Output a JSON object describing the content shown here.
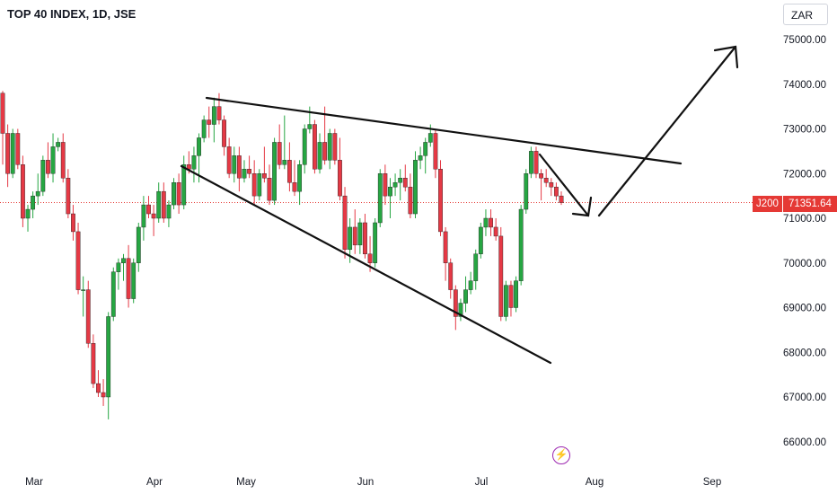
{
  "header": {
    "title": "TOP 40 INDEX, 1D, JSE",
    "currency": "ZAR"
  },
  "price_tag": {
    "symbol": "J200",
    "value": "71351.64"
  },
  "icons": {
    "bolt": "lightning-icon"
  },
  "colors": {
    "up": "#26a642",
    "down": "#e53945",
    "line": "#111111",
    "price_line": "#e53935"
  },
  "chart_data": {
    "type": "candlestick",
    "y_ticks": [
      "75000.00",
      "74000.00",
      "73000.00",
      "72000.00",
      "71000.00",
      "70000.00",
      "69000.00",
      "68000.00",
      "67000.00",
      "66000.00"
    ],
    "x_ticks": [
      "Mar",
      "Apr",
      "May",
      "Jun",
      "Jul",
      "Aug",
      "Sep"
    ],
    "ylim": [
      65800,
      75300
    ],
    "current_price": 71351.64,
    "candles": [
      [
        73800,
        73850,
        72200,
        72900
      ],
      [
        72900,
        73100,
        71700,
        72000
      ],
      [
        72000,
        73000,
        71900,
        72900
      ],
      [
        72900,
        73000,
        72100,
        72200
      ],
      [
        72200,
        72400,
        70800,
        71000
      ],
      [
        71000,
        71300,
        70700,
        71200
      ],
      [
        71200,
        71600,
        71000,
        71500
      ],
      [
        71500,
        72000,
        71300,
        71600
      ],
      [
        71600,
        72400,
        71500,
        72300
      ],
      [
        72300,
        72700,
        71900,
        72000
      ],
      [
        72000,
        72900,
        71800,
        72600
      ],
      [
        72600,
        72800,
        72500,
        72700
      ],
      [
        72700,
        72900,
        71800,
        71900
      ],
      [
        71900,
        72100,
        71000,
        71100
      ],
      [
        71100,
        71300,
        70500,
        70700
      ],
      [
        70700,
        70900,
        69300,
        69400
      ],
      [
        69400,
        69700,
        68800,
        69400
      ],
      [
        69400,
        69600,
        68100,
        68200
      ],
      [
        68200,
        68400,
        67200,
        67300
      ],
      [
        67300,
        67600,
        67000,
        67100
      ],
      [
        67100,
        67400,
        66800,
        67000
      ],
      [
        67000,
        68900,
        66500,
        68800
      ],
      [
        68800,
        69900,
        68700,
        69800
      ],
      [
        69800,
        70100,
        69400,
        70000
      ],
      [
        70000,
        70200,
        69600,
        70100
      ],
      [
        70100,
        70400,
        69000,
        69200
      ],
      [
        69200,
        70100,
        69100,
        70000
      ],
      [
        70000,
        70900,
        69800,
        70800
      ],
      [
        70800,
        71500,
        70500,
        71300
      ],
      [
        71300,
        71500,
        71000,
        71100
      ],
      [
        71100,
        71300,
        70600,
        71000
      ],
      [
        71000,
        71800,
        70900,
        71600
      ],
      [
        71600,
        71800,
        70900,
        71000
      ],
      [
        71000,
        71400,
        70800,
        71300
      ],
      [
        71300,
        71900,
        71200,
        71800
      ],
      [
        71800,
        72000,
        71100,
        71300
      ],
      [
        71300,
        72400,
        71200,
        72200
      ],
      [
        72200,
        72500,
        72000,
        72100
      ],
      [
        72100,
        72600,
        71800,
        72400
      ],
      [
        72400,
        72900,
        71800,
        72800
      ],
      [
        72800,
        73300,
        72700,
        73200
      ],
      [
        73200,
        73500,
        72800,
        73100
      ],
      [
        73100,
        73700,
        72700,
        73500
      ],
      [
        73500,
        73800,
        73100,
        73200
      ],
      [
        73200,
        73300,
        72400,
        72600
      ],
      [
        72600,
        72800,
        71900,
        72000
      ],
      [
        72000,
        72600,
        71800,
        72400
      ],
      [
        72400,
        72600,
        71600,
        71900
      ],
      [
        71900,
        72300,
        71800,
        72100
      ],
      [
        72100,
        72400,
        71900,
        72000
      ],
      [
        72000,
        72300,
        71300,
        71500
      ],
      [
        71500,
        72100,
        71400,
        72000
      ],
      [
        72000,
        72600,
        71800,
        71900
      ],
      [
        71900,
        72200,
        71300,
        71400
      ],
      [
        71400,
        72800,
        71300,
        72700
      ],
      [
        72700,
        73100,
        72100,
        72200
      ],
      [
        72200,
        73300,
        72100,
        72300
      ],
      [
        72300,
        72700,
        71600,
        71800
      ],
      [
        71800,
        72300,
        71500,
        71600
      ],
      [
        71600,
        72300,
        71300,
        72200
      ],
      [
        72200,
        73100,
        72000,
        73000
      ],
      [
        73000,
        73500,
        72900,
        73100
      ],
      [
        73100,
        73200,
        72000,
        72100
      ],
      [
        72100,
        72900,
        72000,
        72700
      ],
      [
        72700,
        73500,
        72200,
        72300
      ],
      [
        72300,
        73000,
        72100,
        72900
      ],
      [
        72900,
        73000,
        72200,
        72300
      ],
      [
        72300,
        72800,
        71400,
        71500
      ],
      [
        71500,
        71700,
        70100,
        70300
      ],
      [
        70300,
        71000,
        70000,
        70800
      ],
      [
        70800,
        71200,
        70200,
        70400
      ],
      [
        70400,
        71000,
        70200,
        70900
      ],
      [
        70900,
        71100,
        70100,
        70200
      ],
      [
        70200,
        70600,
        69800,
        70000
      ],
      [
        70000,
        71000,
        69900,
        70900
      ],
      [
        70900,
        72100,
        70800,
        72000
      ],
      [
        72000,
        72200,
        71300,
        71500
      ],
      [
        71500,
        71900,
        71000,
        71700
      ],
      [
        71700,
        72000,
        71500,
        71800
      ],
      [
        71800,
        72100,
        71400,
        71900
      ],
      [
        71900,
        72200,
        71600,
        71700
      ],
      [
        71700,
        72000,
        71000,
        71100
      ],
      [
        71100,
        72500,
        71000,
        72300
      ],
      [
        72300,
        72600,
        72100,
        72400
      ],
      [
        72400,
        72800,
        72000,
        72700
      ],
      [
        72700,
        73100,
        72600,
        72900
      ],
      [
        72900,
        73000,
        71900,
        72100
      ],
      [
        72100,
        72300,
        70600,
        70700
      ],
      [
        70700,
        70800,
        69600,
        70000
      ],
      [
        70000,
        70100,
        69200,
        69400
      ],
      [
        69400,
        69500,
        68500,
        68800
      ],
      [
        68800,
        69200,
        68700,
        69100
      ],
      [
        69100,
        69700,
        68900,
        69400
      ],
      [
        69400,
        69800,
        69300,
        69600
      ],
      [
        69600,
        70300,
        69400,
        70200
      ],
      [
        70200,
        70900,
        70100,
        70800
      ],
      [
        70800,
        71200,
        70600,
        71000
      ],
      [
        71000,
        71200,
        70600,
        70800
      ],
      [
        70800,
        71000,
        70500,
        70600
      ],
      [
        70600,
        70800,
        68700,
        68800
      ],
      [
        68800,
        69600,
        68700,
        69500
      ],
      [
        69500,
        69600,
        68800,
        69000
      ],
      [
        69000,
        69700,
        68900,
        69600
      ],
      [
        69600,
        71300,
        69500,
        71200
      ],
      [
        71200,
        72100,
        71100,
        72000
      ],
      [
        72000,
        72600,
        71900,
        72500
      ],
      [
        72500,
        72600,
        71900,
        72000
      ],
      [
        72000,
        72100,
        71400,
        71900
      ],
      [
        71900,
        72100,
        71700,
        71800
      ],
      [
        71800,
        71900,
        71500,
        71700
      ],
      [
        71700,
        71800,
        71400,
        71500
      ],
      [
        71500,
        71600,
        71300,
        71350
      ]
    ],
    "annotations": [
      {
        "type": "line",
        "from": [
          "Apr 19",
          73750
        ],
        "to": [
          "Aug 20",
          72230
        ]
      },
      {
        "type": "line",
        "from": [
          "Apr 8",
          72100
        ],
        "to": [
          "Jul 31",
          67780
        ]
      },
      {
        "type": "arrow",
        "from": [
          "Jul 15",
          72450
        ],
        "to": [
          "Jul 28",
          70980
        ]
      },
      {
        "type": "arrow",
        "from": [
          "Jul 29",
          71000
        ],
        "to": [
          "Aug 30",
          74850
        ]
      }
    ]
  }
}
